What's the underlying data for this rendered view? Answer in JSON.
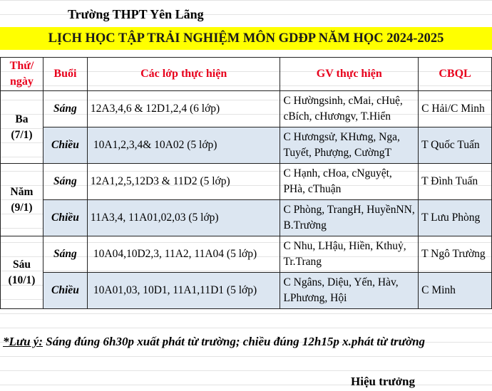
{
  "school": "Trường THPT Yên Lãng",
  "title": "LỊCH HỌC TẬP TRẢI NGHIỆM MÔN GDĐP NĂM HỌC 2024-2025",
  "headers": [
    "Thứ/ ngày",
    "Buổi",
    "Các lớp thực hiện",
    "GV thực hiện",
    "CBQL"
  ],
  "days": [
    {
      "day": "Ba",
      "date": "(7/1)",
      "rows": [
        {
          "session": "Sáng",
          "classes": "12A3,4,6 & 12D1,2,4 (6 lớp)",
          "teachers": "C Hườngsinh, cMai, cHuệ, cBích, cHươngv, T.Hiển",
          "manager": "C Hải/C Minh"
        },
        {
          "session": "Chiều",
          "classes": "10A1,2,3,4& 10A02 (5 lớp)",
          "teachers": "C Hươngsử, KHưng, Nga, Tuyết, Phượng, CườngT",
          "manager": "T Quốc Tuấn"
        }
      ]
    },
    {
      "day": "Năm",
      "date": "(9/1)",
      "rows": [
        {
          "session": "Sáng",
          "classes": "12A1,2,5,12D3 & 11D2 (5 lớp)",
          "teachers": "C Hạnh, cHoa, cNguyệt, PHà, cThuận",
          "manager": "T Đình Tuấn"
        },
        {
          "session": "Chiều",
          "classes": "11A3,4, 11A01,02,03 (5 lớp)",
          "teachers": "C Phòng, TrangH, HuyềnNN, B.Trường",
          "manager": "T Lưu Phòng"
        }
      ]
    },
    {
      "day": "Sáu",
      "date": "(10/1)",
      "rows": [
        {
          "session": "Sáng",
          "classes": "10A04,10D2,3, 11A2, 11A04 (5 lớp)",
          "teachers": "C Nhu, LHậu, Hiền, Kthuỷ, Tr.Trang",
          "manager": "T Ngô Trường"
        },
        {
          "session": "Chiều",
          "classes": "10A01,03, 10D1, 11A1,11D1 (5 lớp)",
          "teachers": "C Ngâns, Diệu, Yến, Hàv, LPhương, Hội",
          "manager": "C Minh"
        }
      ]
    }
  ],
  "note_label": "*Lưu ý:",
  "note_text": " Sáng đúng 6h30p xuất phát từ trường; chiều đúng 12h15p x.phát từ trường",
  "signature": "Hiệu trưởng"
}
